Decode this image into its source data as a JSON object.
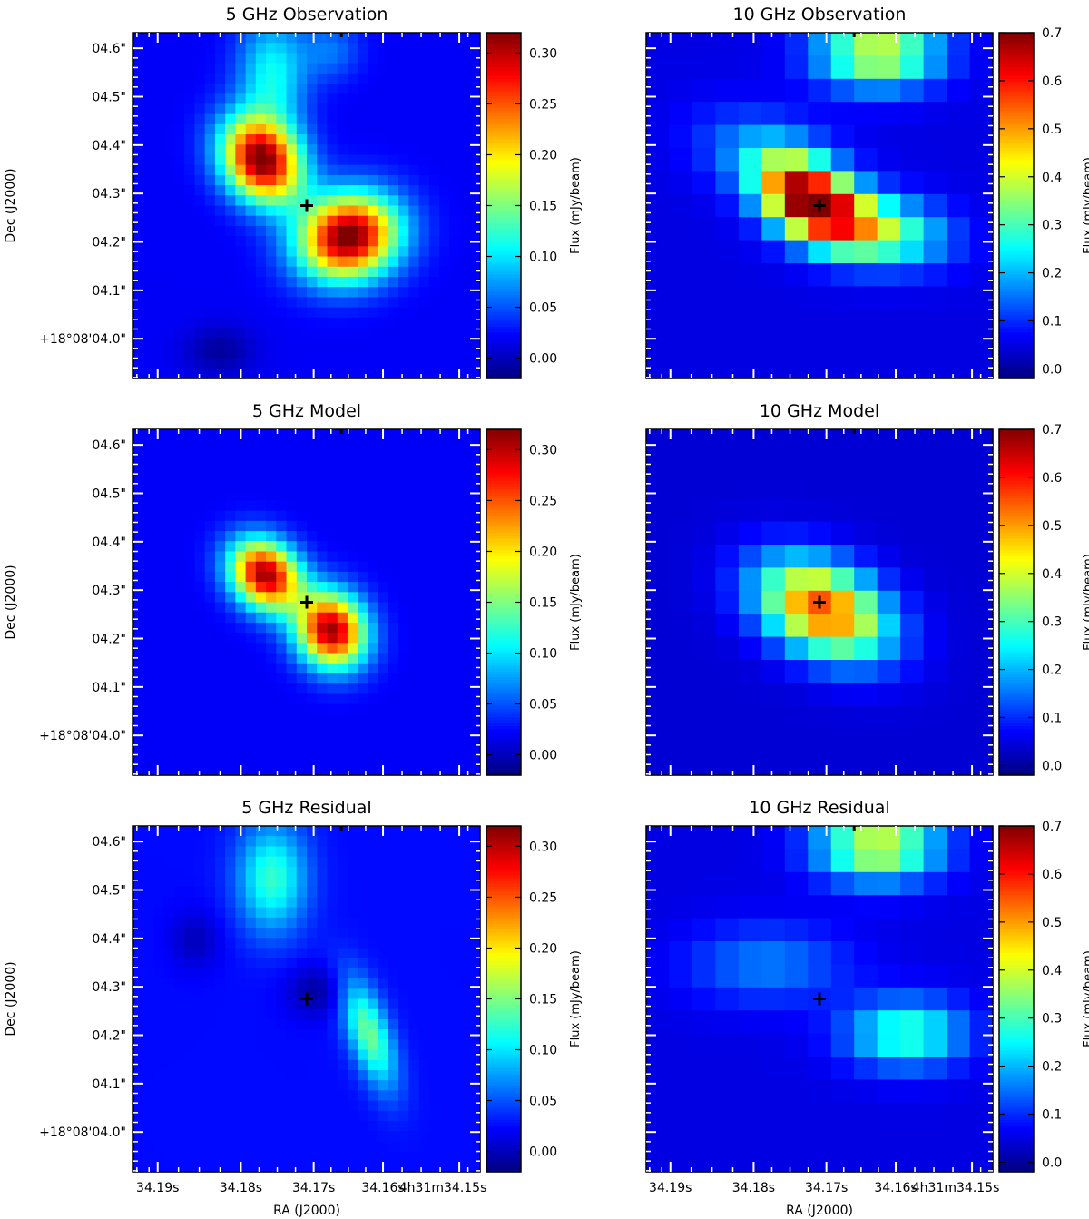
{
  "chart_data": {
    "type": "heatmap",
    "figure": {
      "xlabel": "RA (J2000)",
      "ylabel": "Dec (J2000)",
      "x_ticks": [
        "34.19s",
        "34.18s",
        "34.17s",
        "34.16s",
        "4h31m34.15s"
      ],
      "y_ticks": [
        "04.6\"",
        "04.5\"",
        "04.4\"",
        "04.3\"",
        "04.2\"",
        "04.1\"",
        "+18°08'04.0\""
      ],
      "colorbar_label": "Flux (mJy/beam)",
      "colormap": "jet",
      "marker": {
        "type": "plus",
        "x": 0.5,
        "y": 0.5,
        "color": "#000000"
      }
    },
    "panels": [
      {
        "title": "5 GHz Observation",
        "grid": 34,
        "vmin": -0.02,
        "vmax": 0.32,
        "cbar_ticks": [
          "0.00",
          "0.05",
          "0.10",
          "0.15",
          "0.20",
          "0.25",
          "0.30"
        ],
        "cbar_values": [
          0.0,
          0.05,
          0.1,
          0.15,
          0.2,
          0.25,
          0.3
        ],
        "background": 0.02,
        "components": [
          {
            "x": 0.37,
            "y": 0.37,
            "sx": 0.08,
            "sy": 0.085,
            "rho": 0.2,
            "amp": 0.3
          },
          {
            "x": 0.62,
            "y": 0.59,
            "sx": 0.1,
            "sy": 0.085,
            "rho": -0.1,
            "amp": 0.31
          },
          {
            "x": 0.4,
            "y": 0.12,
            "sx": 0.07,
            "sy": 0.12,
            "rho": 0.0,
            "amp": 0.09
          },
          {
            "x": 0.57,
            "y": 0.05,
            "sx": 0.06,
            "sy": 0.06,
            "rho": 0.0,
            "amp": 0.04
          },
          {
            "x": 0.25,
            "y": 0.92,
            "sx": 0.07,
            "sy": 0.05,
            "rho": 0.0,
            "amp": -0.03
          }
        ]
      },
      {
        "title": "10 GHz Observation",
        "grid": 15,
        "vmin": -0.02,
        "vmax": 0.7,
        "cbar_ticks": [
          "0.0",
          "0.1",
          "0.2",
          "0.3",
          "0.4",
          "0.5",
          "0.6",
          "0.7"
        ],
        "cbar_values": [
          0.0,
          0.1,
          0.2,
          0.3,
          0.4,
          0.5,
          0.6,
          0.7
        ],
        "background": 0.05,
        "components": [
          {
            "x": 0.47,
            "y": 0.48,
            "sx": 0.1,
            "sy": 0.08,
            "rho": 0.4,
            "amp": 0.62
          },
          {
            "x": 0.65,
            "y": 0.57,
            "sx": 0.14,
            "sy": 0.07,
            "rho": 0.2,
            "amp": 0.32
          },
          {
            "x": 0.67,
            "y": 0.06,
            "sx": 0.12,
            "sy": 0.07,
            "rho": 0.0,
            "amp": 0.36
          },
          {
            "x": 0.35,
            "y": 0.35,
            "sx": 0.14,
            "sy": 0.09,
            "rho": 0.3,
            "amp": 0.12
          }
        ]
      },
      {
        "title": "5 GHz Model",
        "grid": 34,
        "vmin": -0.02,
        "vmax": 0.32,
        "cbar_ticks": [
          "0.00",
          "0.05",
          "0.10",
          "0.15",
          "0.20",
          "0.25",
          "0.30"
        ],
        "cbar_values": [
          0.0,
          0.05,
          0.1,
          0.15,
          0.2,
          0.25,
          0.3
        ],
        "background": 0.02,
        "components": [
          {
            "x": 0.38,
            "y": 0.42,
            "sx": 0.07,
            "sy": 0.07,
            "rho": 0.2,
            "amp": 0.29
          },
          {
            "x": 0.57,
            "y": 0.58,
            "sx": 0.07,
            "sy": 0.075,
            "rho": 0.1,
            "amp": 0.29
          }
        ]
      },
      {
        "title": "10 GHz Model",
        "grid": 15,
        "vmin": -0.02,
        "vmax": 0.7,
        "cbar_ticks": [
          "0.0",
          "0.1",
          "0.2",
          "0.3",
          "0.4",
          "0.5",
          "0.6",
          "0.7"
        ],
        "cbar_values": [
          0.0,
          0.1,
          0.2,
          0.3,
          0.4,
          0.5,
          0.6,
          0.7
        ],
        "background": 0.04,
        "components": [
          {
            "x": 0.51,
            "y": 0.52,
            "sx": 0.13,
            "sy": 0.1,
            "rho": 0.35,
            "amp": 0.52
          }
        ]
      },
      {
        "title": "5 GHz Residual",
        "grid": 34,
        "vmin": -0.02,
        "vmax": 0.32,
        "cbar_ticks": [
          "0.00",
          "0.05",
          "0.10",
          "0.15",
          "0.20",
          "0.25",
          "0.30"
        ],
        "cbar_values": [
          0.0,
          0.05,
          0.1,
          0.15,
          0.2,
          0.25,
          0.3
        ],
        "background": 0.025,
        "components": [
          {
            "x": 0.4,
            "y": 0.15,
            "sx": 0.07,
            "sy": 0.11,
            "rho": 0.0,
            "amp": 0.1
          },
          {
            "x": 0.68,
            "y": 0.6,
            "sx": 0.055,
            "sy": 0.11,
            "rho": 0.6,
            "amp": 0.12
          },
          {
            "x": 0.53,
            "y": 0.48,
            "sx": 0.06,
            "sy": 0.05,
            "rho": 0.0,
            "amp": -0.035
          },
          {
            "x": 0.18,
            "y": 0.33,
            "sx": 0.05,
            "sy": 0.06,
            "rho": 0.0,
            "amp": -0.025
          }
        ]
      },
      {
        "title": "10 GHz Residual",
        "grid": 15,
        "vmin": -0.02,
        "vmax": 0.7,
        "cbar_ticks": [
          "0.0",
          "0.1",
          "0.2",
          "0.3",
          "0.4",
          "0.5",
          "0.6",
          "0.7"
        ],
        "cbar_values": [
          0.0,
          0.1,
          0.2,
          0.3,
          0.4,
          0.5,
          0.6,
          0.7
        ],
        "background": 0.05,
        "components": [
          {
            "x": 0.67,
            "y": 0.06,
            "sx": 0.12,
            "sy": 0.07,
            "rho": 0.0,
            "amp": 0.36
          },
          {
            "x": 0.75,
            "y": 0.6,
            "sx": 0.12,
            "sy": 0.07,
            "rho": 0.0,
            "amp": 0.24
          },
          {
            "x": 0.35,
            "y": 0.4,
            "sx": 0.16,
            "sy": 0.08,
            "rho": 0.0,
            "amp": 0.11
          }
        ]
      }
    ]
  }
}
